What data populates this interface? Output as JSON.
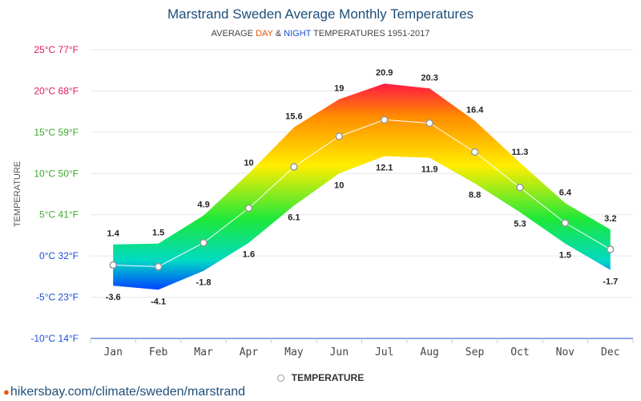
{
  "chart_data": {
    "type": "area",
    "title": "Marstrand Sweden Average Monthly Temperatures",
    "subtitle": {
      "prefix": "AVERAGE",
      "day": "DAY",
      "amp": "&",
      "night": "NIGHT",
      "suffix": "TEMPERATURES 1951-2017"
    },
    "ylabel": "TEMPERATURE",
    "categories": [
      "Jan",
      "Feb",
      "Mar",
      "Apr",
      "May",
      "Jun",
      "Jul",
      "Aug",
      "Sep",
      "Oct",
      "Nov",
      "Dec"
    ],
    "ylim": [
      -10,
      25
    ],
    "y_ticks": [
      {
        "value": 25,
        "label": "25°C 77°F",
        "color": "#e0195e"
      },
      {
        "value": 20,
        "label": "20°C 68°F",
        "color": "#e0195e"
      },
      {
        "value": 15,
        "label": "15°C 59°F",
        "color": "#3daa2e"
      },
      {
        "value": 10,
        "label": "10°C 50°F",
        "color": "#3daa2e"
      },
      {
        "value": 5,
        "label": "5°C 41°F",
        "color": "#3daa2e"
      },
      {
        "value": 0,
        "label": "0°C 32°F",
        "color": "#1b4fd6"
      },
      {
        "value": -5,
        "label": "-5°C 23°F",
        "color": "#1b4fd6"
      },
      {
        "value": -10,
        "label": "-10°C 14°F",
        "color": "#1b4fd6"
      }
    ],
    "series": [
      {
        "name": "DAY",
        "values": [
          1.4,
          1.5,
          4.9,
          10,
          15.6,
          19,
          20.9,
          20.3,
          16.4,
          11.3,
          6.4,
          3.2
        ]
      },
      {
        "name": "NIGHT",
        "values": [
          -3.6,
          -4.1,
          -1.8,
          1.6,
          6.1,
          10,
          12.1,
          11.9,
          8.8,
          5.3,
          1.5,
          -1.7
        ]
      },
      {
        "name": "TEMPERATURE",
        "values": [
          -1.1,
          -1.3,
          1.6,
          5.8,
          10.8,
          14.5,
          16.5,
          16.1,
          12.6,
          8.3,
          4.0,
          0.8
        ]
      }
    ],
    "legend": {
      "label": "TEMPERATURE",
      "position": "bottom"
    },
    "grid": true
  },
  "source": {
    "text": "hikersbay.com/climate/sweden/marstrand"
  }
}
